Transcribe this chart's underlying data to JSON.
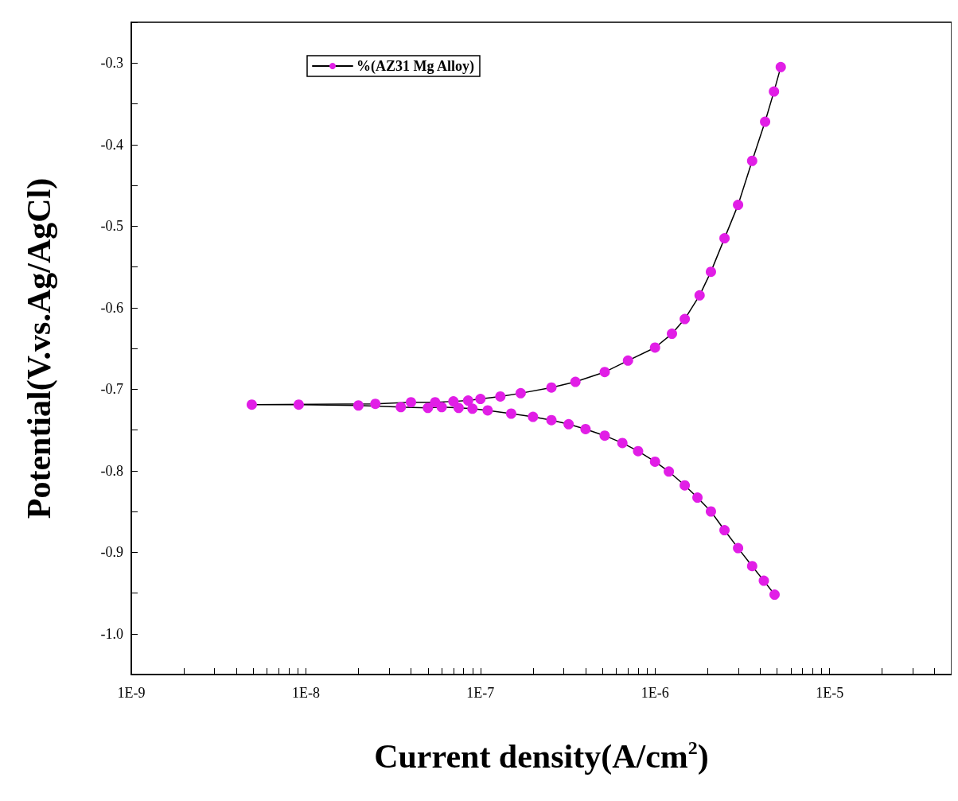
{
  "chart_data": {
    "type": "line",
    "xlabel": "Current density(A/cm$^{2}$)",
    "ylabel": "Potential(V.vs.Ag/AgCl)",
    "log": "x",
    "xlim": [
      1e-09,
      5e-05
    ],
    "ylim": [
      -1.05,
      -0.25
    ],
    "xticks": [
      {
        "value": 1e-09,
        "label": "1E-9"
      },
      {
        "value": 2e-09,
        "label": null
      },
      {
        "value": 3e-09,
        "label": null
      },
      {
        "value": 4e-09,
        "label": null
      },
      {
        "value": 5e-09,
        "label": null
      },
      {
        "value": 6e-09,
        "label": null
      },
      {
        "value": 7e-09,
        "label": null
      },
      {
        "value": 8e-09,
        "label": null
      },
      {
        "value": 9e-09,
        "label": null
      },
      {
        "value": 1e-08,
        "label": "1E-8"
      },
      {
        "value": 2e-08,
        "label": null
      },
      {
        "value": 3e-08,
        "label": null
      },
      {
        "value": 4e-08,
        "label": null
      },
      {
        "value": 5e-08,
        "label": null
      },
      {
        "value": 6e-08,
        "label": null
      },
      {
        "value": 7e-08,
        "label": null
      },
      {
        "value": 8e-08,
        "label": null
      },
      {
        "value": 9e-08,
        "label": null
      },
      {
        "value": 1e-07,
        "label": "1E-7"
      },
      {
        "value": 2e-07,
        "label": null
      },
      {
        "value": 3e-07,
        "label": null
      },
      {
        "value": 4e-07,
        "label": null
      },
      {
        "value": 5e-07,
        "label": null
      },
      {
        "value": 6e-07,
        "label": null
      },
      {
        "value": 7e-07,
        "label": null
      },
      {
        "value": 8e-07,
        "label": null
      },
      {
        "value": 9e-07,
        "label": null
      },
      {
        "value": 1e-06,
        "label": "1E-6"
      },
      {
        "value": 2e-06,
        "label": null
      },
      {
        "value": 3e-06,
        "label": null
      },
      {
        "value": 4e-06,
        "label": null
      },
      {
        "value": 5e-06,
        "label": null
      },
      {
        "value": 6e-06,
        "label": null
      },
      {
        "value": 7e-06,
        "label": null
      },
      {
        "value": 8e-06,
        "label": null
      },
      {
        "value": 9e-06,
        "label": null
      },
      {
        "value": 1e-05,
        "label": "1E-5"
      },
      {
        "value": 2e-05,
        "label": null
      },
      {
        "value": 3e-05,
        "label": null
      },
      {
        "value": 4e-05,
        "label": null
      },
      {
        "value": 5e-05,
        "label": null
      }
    ],
    "yticks": [
      {
        "value": -1.05,
        "label": null
      },
      {
        "value": -1.0,
        "label": "-1.0"
      },
      {
        "value": -0.95,
        "label": null
      },
      {
        "value": -0.9,
        "label": "-0.9"
      },
      {
        "value": -0.85,
        "label": null
      },
      {
        "value": -0.8,
        "label": "-0.8"
      },
      {
        "value": -0.75,
        "label": null
      },
      {
        "value": -0.7,
        "label": "-0.7"
      },
      {
        "value": -0.65,
        "label": null
      },
      {
        "value": -0.6,
        "label": "-0.6"
      },
      {
        "value": -0.55,
        "label": null
      },
      {
        "value": -0.5,
        "label": "-0.5"
      },
      {
        "value": -0.45,
        "label": null
      },
      {
        "value": -0.4,
        "label": "-0.4"
      },
      {
        "value": -0.35,
        "label": null
      },
      {
        "value": -0.3,
        "label": "-0.3"
      },
      {
        "value": -0.25,
        "label": null
      }
    ],
    "legend": "top left",
    "marker": "circle",
    "line_style": "solid",
    "grid": false,
    "series": [
      {
        "name": "%(AZ31 Mg Alloy)",
        "color": "#e11ee6",
        "x": [
          4.84e-06,
          4.2e-06,
          3.6e-06,
          2.99e-06,
          2.5e-06,
          2.09e-06,
          1.75e-06,
          1.48e-06,
          1.2e-06,
          1e-06,
          8e-07,
          6.5e-07,
          5.15e-07,
          4e-07,
          3.2e-07,
          2.55e-07,
          2e-07,
          1.5e-07,
          1.1e-07,
          9e-08,
          7.5e-08,
          6e-08,
          5e-08,
          3.5e-08,
          2e-08,
          9.1e-09,
          4.9e-09,
          2.5e-08,
          4e-08,
          5.5e-08,
          7e-08,
          8.5e-08,
          1e-07,
          1.3e-07,
          1.7e-07,
          2.55e-07,
          3.5e-07,
          5.15e-07,
          7e-07,
          1e-06,
          1.25e-06,
          1.48e-06,
          1.8e-06,
          2.09e-06,
          2.5e-06,
          2.99e-06,
          3.6e-06,
          4.27e-06,
          4.8e-06,
          5.25e-06
        ],
        "values": [
          -0.952,
          -0.935,
          -0.917,
          -0.895,
          -0.873,
          -0.85,
          -0.833,
          -0.818,
          -0.801,
          -0.789,
          -0.776,
          -0.766,
          -0.757,
          -0.749,
          -0.743,
          -0.738,
          -0.734,
          -0.73,
          -0.726,
          -0.724,
          -0.723,
          -0.722,
          -0.723,
          -0.722,
          -0.72,
          -0.719,
          -0.719,
          -0.718,
          -0.716,
          -0.716,
          -0.715,
          -0.714,
          -0.712,
          -0.709,
          -0.705,
          -0.698,
          -0.691,
          -0.679,
          -0.665,
          -0.649,
          -0.632,
          -0.614,
          -0.585,
          -0.556,
          -0.515,
          -0.474,
          -0.42,
          -0.372,
          -0.335,
          -0.305
        ]
      }
    ]
  }
}
